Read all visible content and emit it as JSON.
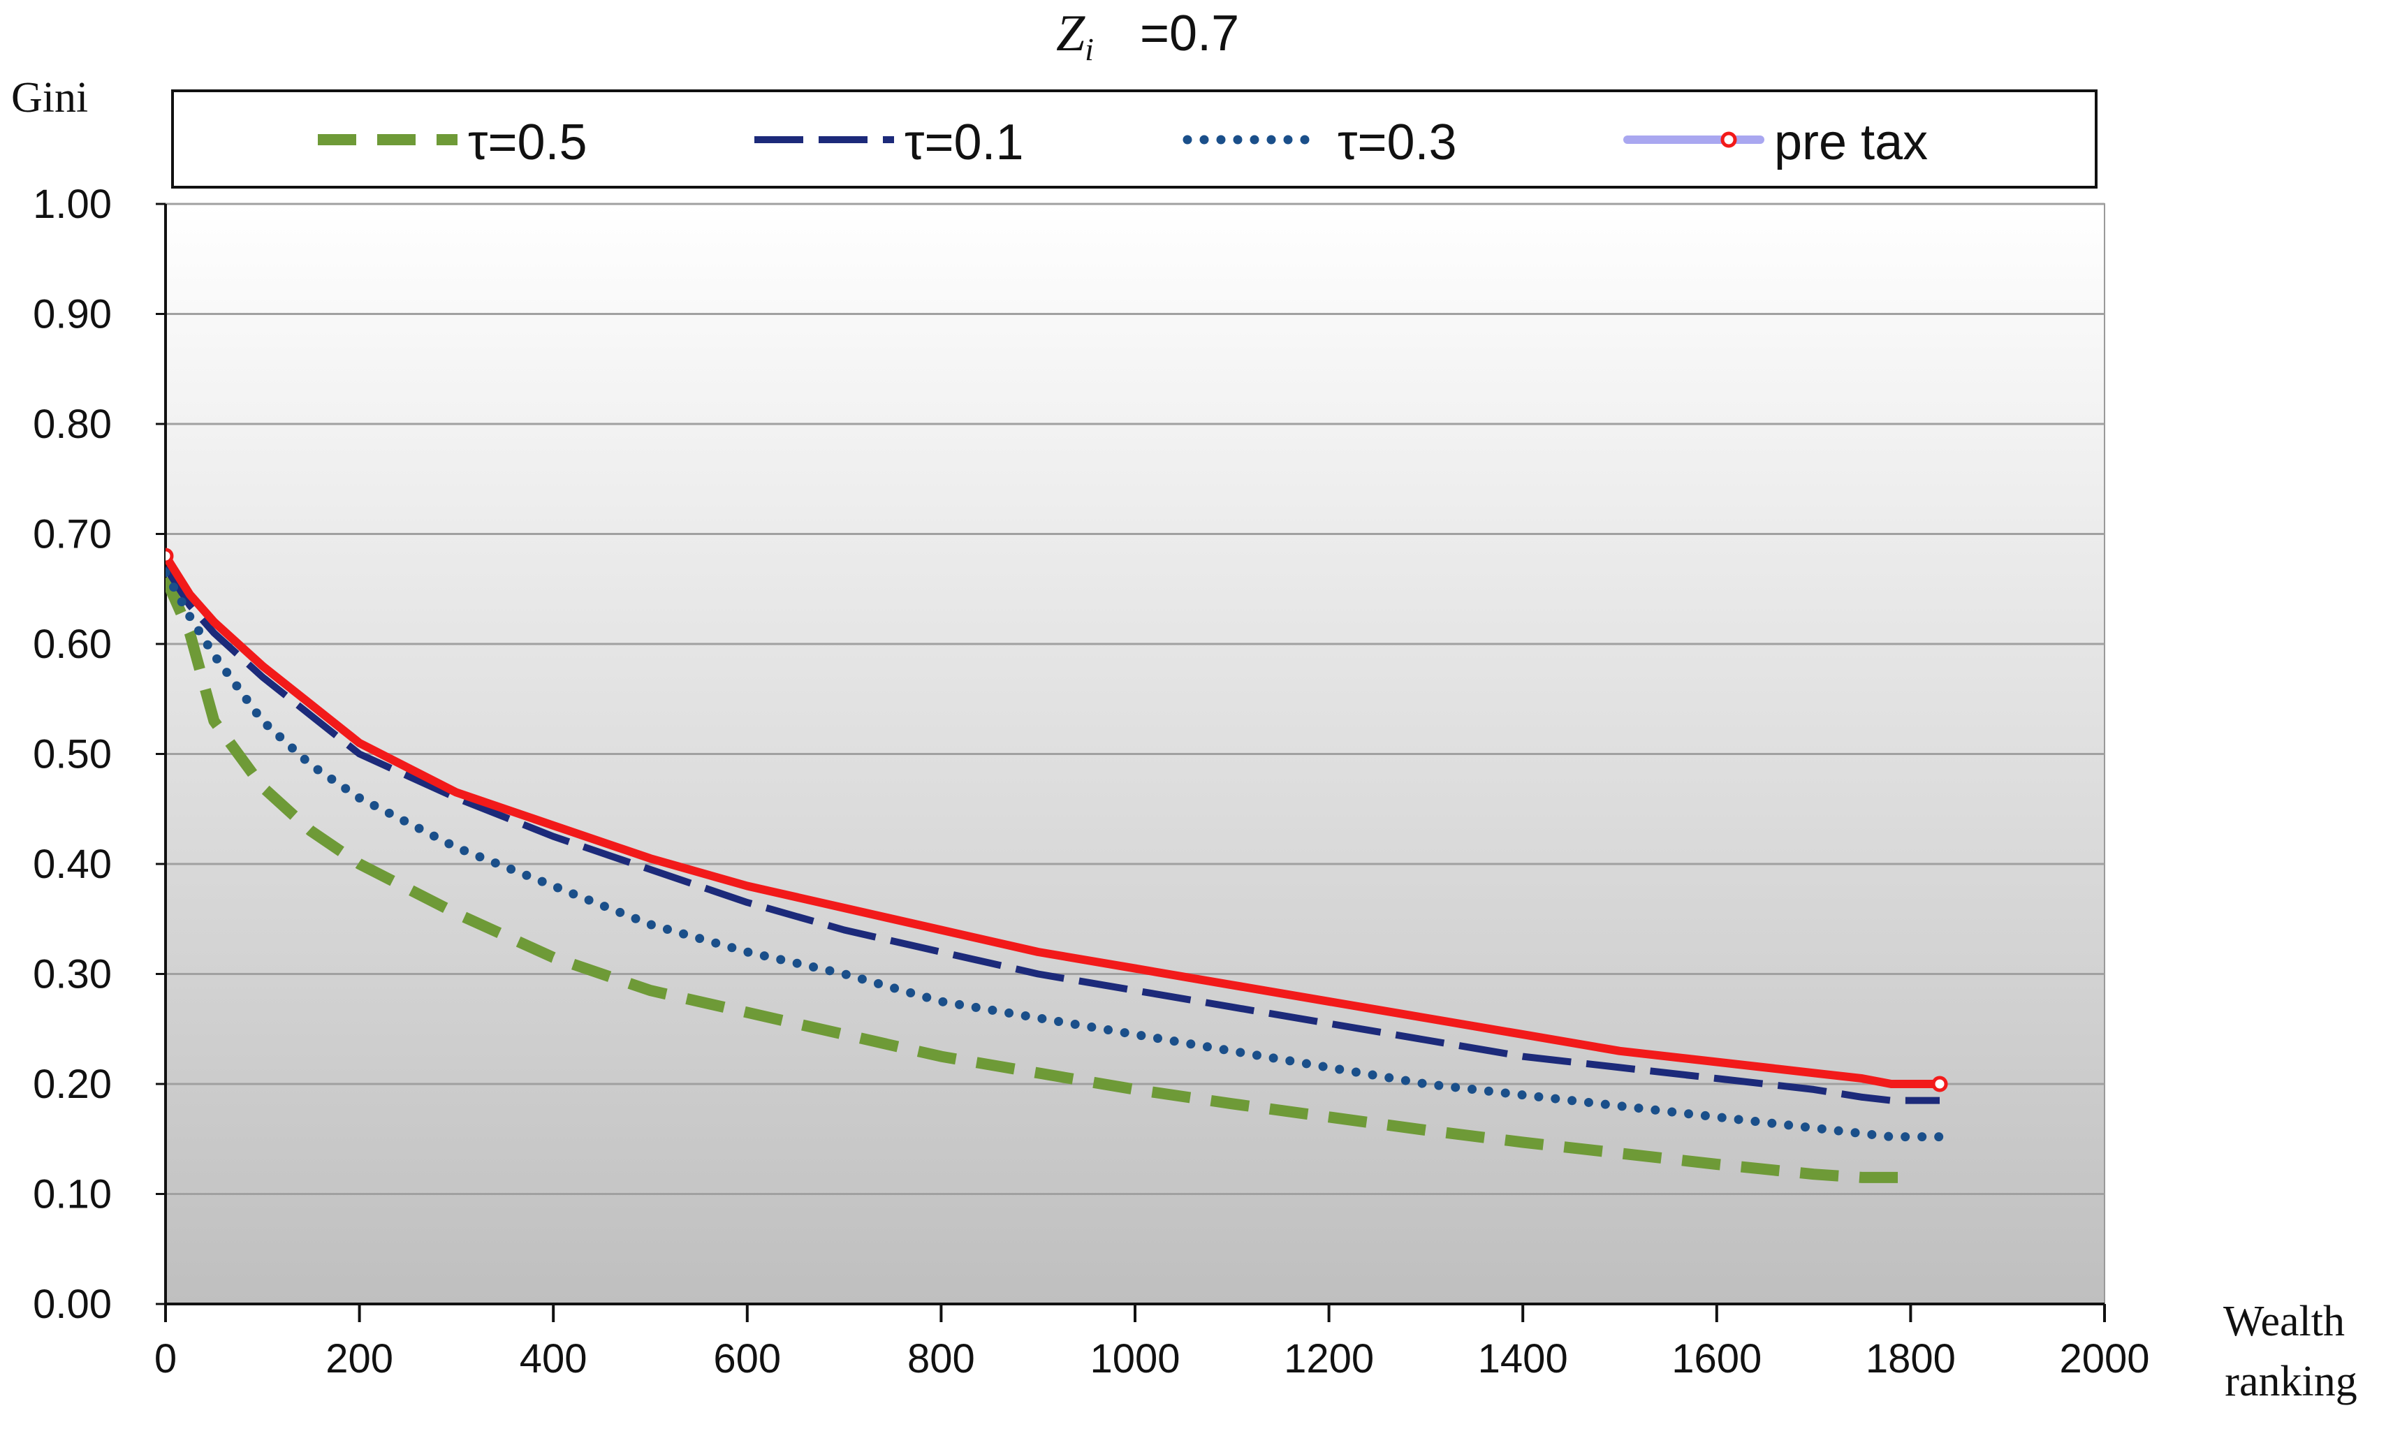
{
  "chart_data": {
    "type": "line",
    "title_var": "Z",
    "title_sub": "i",
    "title_value": "=0.7",
    "ylabel": "Gini",
    "xlabel_line1": "Wealth",
    "xlabel_line2": "ranking",
    "xlim": [
      0,
      2000
    ],
    "ylim": [
      0,
      1
    ],
    "xticks": [
      "0",
      "200",
      "400",
      "600",
      "800",
      "1000",
      "1200",
      "1400",
      "1600",
      "1800",
      "2000"
    ],
    "yticks": [
      "0.00",
      "0.10",
      "0.20",
      "0.30",
      "0.40",
      "0.50",
      "0.60",
      "0.70",
      "0.80",
      "0.90",
      "1.00"
    ],
    "grid": true,
    "legend_position": "top",
    "x": [
      0,
      25,
      50,
      100,
      150,
      200,
      300,
      400,
      500,
      600,
      700,
      800,
      900,
      1000,
      1100,
      1200,
      1300,
      1400,
      1500,
      1600,
      1700,
      1750,
      1780,
      1800,
      1830
    ],
    "series": [
      {
        "name": "τ=0.5",
        "color": "#6e9a37",
        "style": "dash",
        "values": [
          0.66,
          0.61,
          0.53,
          0.47,
          0.43,
          0.4,
          0.355,
          0.315,
          0.285,
          0.265,
          0.245,
          0.225,
          0.21,
          0.195,
          0.182,
          0.17,
          0.158,
          0.147,
          0.137,
          0.127,
          0.118,
          0.115,
          0.115,
          0.115,
          null
        ]
      },
      {
        "name": "τ=0.1",
        "color": "#1c2a7a",
        "style": "longdash",
        "values": [
          0.67,
          0.635,
          0.61,
          0.57,
          0.535,
          0.5,
          0.46,
          0.425,
          0.395,
          0.365,
          0.34,
          0.32,
          0.3,
          0.285,
          0.27,
          0.255,
          0.24,
          0.225,
          0.215,
          0.205,
          0.195,
          0.188,
          0.185,
          0.185,
          0.185
        ]
      },
      {
        "name": "τ=0.3",
        "color": "#1a4f8a",
        "style": "dot",
        "values": [
          0.665,
          0.625,
          0.59,
          0.53,
          0.49,
          0.46,
          0.415,
          0.38,
          0.345,
          0.32,
          0.3,
          0.275,
          0.26,
          0.245,
          0.23,
          0.215,
          0.2,
          0.19,
          0.18,
          0.17,
          0.16,
          0.155,
          0.152,
          0.152,
          0.152
        ]
      },
      {
        "name": "pre tax",
        "color": "#f21a1a",
        "style": "solid",
        "legend_color": "#a9a7f0",
        "values": [
          0.68,
          0.645,
          0.62,
          0.58,
          0.545,
          0.51,
          0.465,
          0.435,
          0.405,
          0.38,
          0.36,
          0.34,
          0.32,
          0.305,
          0.29,
          0.275,
          0.26,
          0.245,
          0.23,
          0.22,
          0.21,
          0.205,
          0.2,
          0.2,
          0.2
        ]
      }
    ]
  }
}
